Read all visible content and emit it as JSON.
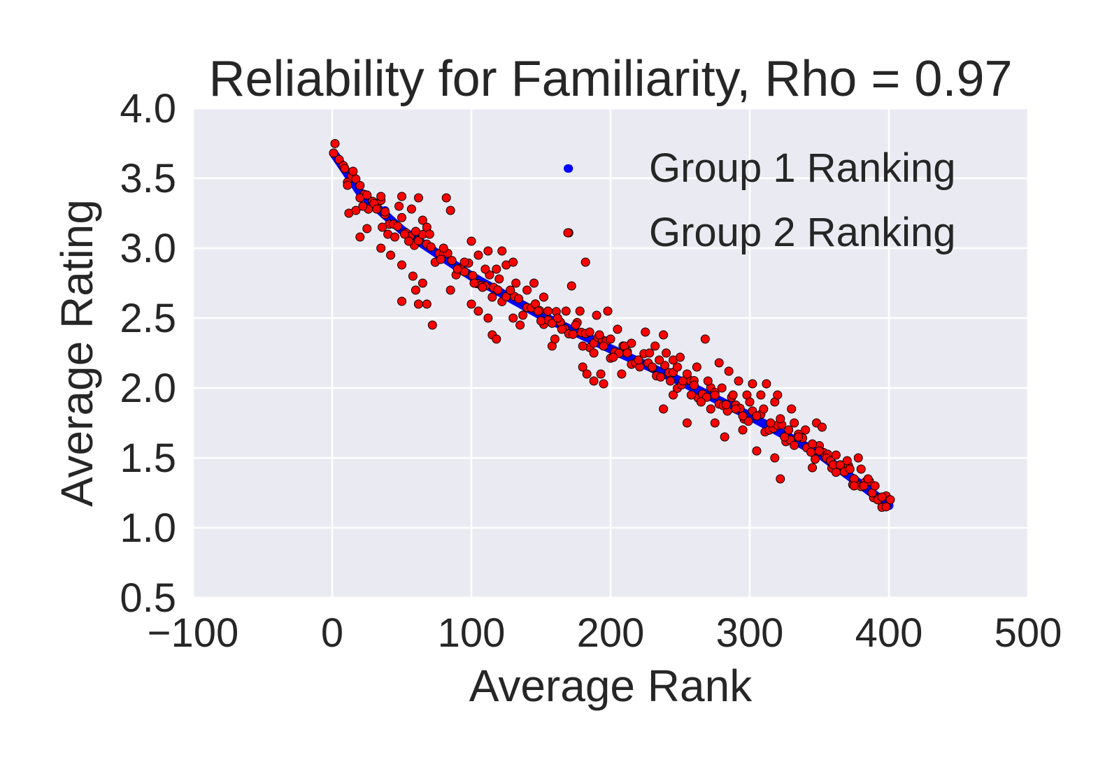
{
  "chart_data": {
    "type": "scatter",
    "title": "Reliability for Familiarity, Rho = 0.97",
    "xlabel": "Average Rank",
    "ylabel": "Average Rating",
    "xlim": [
      -100,
      500
    ],
    "ylim": [
      0.5,
      4.0
    ],
    "x_ticks": [
      -100,
      0,
      100,
      200,
      300,
      400,
      500
    ],
    "x_tick_labels": [
      "−100",
      "0",
      "100",
      "200",
      "300",
      "400",
      "500"
    ],
    "y_ticks": [
      0.5,
      1.0,
      1.5,
      2.0,
      2.5,
      3.0,
      3.5,
      4.0
    ],
    "y_tick_labels": [
      "0.5",
      "1.0",
      "1.5",
      "2.0",
      "2.5",
      "3.0",
      "3.5",
      "4.0"
    ],
    "grid": true,
    "legend_position": "top-right",
    "background_color": "#eaeaf2",
    "series": [
      {
        "name": "Group 1 Ranking",
        "color": "#0000ff",
        "curve": {
          "x": [
            1,
            20,
            50,
            100,
            150,
            200,
            250,
            300,
            350,
            400
          ],
          "y": [
            3.68,
            3.4,
            3.13,
            2.8,
            2.52,
            2.28,
            2.05,
            1.8,
            1.53,
            1.16
          ]
        },
        "outliers": [
          [
            38,
            3.27
          ],
          [
            170,
            3.57
          ]
        ]
      },
      {
        "name": "Group 2 Ranking",
        "color": "#ff0000",
        "curve": {
          "x": [
            1,
            20,
            50,
            100,
            150,
            200,
            250,
            300,
            350,
            400
          ],
          "y": [
            3.68,
            3.4,
            3.13,
            2.8,
            2.52,
            2.28,
            2.05,
            1.8,
            1.53,
            1.16
          ]
        },
        "points": [
          [
            1,
            3.68
          ],
          [
            9,
            3.57
          ],
          [
            11,
            3.45
          ],
          [
            12,
            3.25
          ],
          [
            15,
            3.55
          ],
          [
            17,
            3.27
          ],
          [
            20,
            3.36
          ],
          [
            22,
            3.3
          ],
          [
            25,
            3.38
          ],
          [
            30,
            3.32
          ],
          [
            32,
            3.28
          ],
          [
            35,
            3.37
          ],
          [
            36,
            3.15
          ],
          [
            38,
            3.26
          ],
          [
            40,
            3.1
          ],
          [
            45,
            3.08
          ],
          [
            48,
            3.3
          ],
          [
            50,
            3.37
          ],
          [
            52,
            3.1
          ],
          [
            55,
            3.05
          ],
          [
            57,
            3.28
          ],
          [
            60,
            3.12
          ],
          [
            62,
            3.36
          ],
          [
            65,
            3.2
          ],
          [
            68,
            3.15
          ],
          [
            70,
            3.1
          ],
          [
            20,
            3.08
          ],
          [
            25,
            3.14
          ],
          [
            35,
            3.0
          ],
          [
            42,
            2.95
          ],
          [
            50,
            2.88
          ],
          [
            58,
            2.8
          ],
          [
            60,
            2.7
          ],
          [
            62,
            2.6
          ],
          [
            65,
            2.75
          ],
          [
            68,
            2.6
          ],
          [
            72,
            2.45
          ],
          [
            50,
            2.62
          ],
          [
            80,
            3.0
          ],
          [
            82,
            3.36
          ],
          [
            85,
            3.27
          ],
          [
            78,
            2.92
          ],
          [
            85,
            2.7
          ],
          [
            90,
            2.85
          ],
          [
            95,
            2.9
          ],
          [
            100,
            3.05
          ],
          [
            102,
            2.75
          ],
          [
            105,
            2.95
          ],
          [
            108,
            2.72
          ],
          [
            110,
            2.85
          ],
          [
            112,
            2.98
          ],
          [
            115,
            2.65
          ],
          [
            118,
            2.85
          ],
          [
            120,
            2.78
          ],
          [
            122,
            2.98
          ],
          [
            125,
            2.88
          ],
          [
            128,
            2.7
          ],
          [
            130,
            2.9
          ],
          [
            132,
            2.75
          ],
          [
            100,
            2.6
          ],
          [
            105,
            2.55
          ],
          [
            112,
            2.5
          ],
          [
            115,
            2.38
          ],
          [
            118,
            2.35
          ],
          [
            130,
            2.5
          ],
          [
            135,
            2.45
          ],
          [
            140,
            2.7
          ],
          [
            145,
            2.75
          ],
          [
            148,
            2.55
          ],
          [
            150,
            2.48
          ],
          [
            152,
            2.65
          ],
          [
            155,
            2.55
          ],
          [
            158,
            2.3
          ],
          [
            160,
            2.35
          ],
          [
            162,
            2.5
          ],
          [
            165,
            2.42
          ],
          [
            168,
            2.55
          ],
          [
            170,
            3.11
          ],
          [
            172,
            2.73
          ],
          [
            175,
            2.45
          ],
          [
            178,
            2.55
          ],
          [
            180,
            2.3
          ],
          [
            182,
            2.9
          ],
          [
            185,
            2.4
          ],
          [
            188,
            2.25
          ],
          [
            190,
            2.52
          ],
          [
            192,
            2.38
          ],
          [
            195,
            2.3
          ],
          [
            198,
            2.55
          ],
          [
            200,
            2.35
          ],
          [
            202,
            2.22
          ],
          [
            205,
            2.42
          ],
          [
            208,
            2.1
          ],
          [
            210,
            2.3
          ],
          [
            212,
            2.25
          ],
          [
            180,
            2.15
          ],
          [
            183,
            2.1
          ],
          [
            188,
            2.05
          ],
          [
            193,
            2.1
          ],
          [
            195,
            2.03
          ],
          [
            215,
            2.32
          ],
          [
            220,
            2.2
          ],
          [
            225,
            2.4
          ],
          [
            228,
            2.25
          ],
          [
            230,
            2.15
          ],
          [
            232,
            2.3
          ],
          [
            235,
            2.2
          ],
          [
            238,
            2.38
          ],
          [
            240,
            2.25
          ],
          [
            243,
            2.05
          ],
          [
            245,
            2.2
          ],
          [
            248,
            2.15
          ],
          [
            250,
            2.22
          ],
          [
            252,
            2.05
          ],
          [
            255,
            2.1
          ],
          [
            258,
            1.95
          ],
          [
            260,
            2.02
          ],
          [
            262,
            2.15
          ],
          [
            265,
            1.9
          ],
          [
            268,
            2.35
          ],
          [
            270,
            2.05
          ],
          [
            272,
            1.85
          ],
          [
            275,
            1.95
          ],
          [
            278,
            2.18
          ],
          [
            280,
            2.0
          ],
          [
            283,
            1.88
          ],
          [
            285,
            2.12
          ],
          [
            288,
            1.95
          ],
          [
            290,
            1.85
          ],
          [
            292,
            2.05
          ],
          [
            295,
            1.8
          ],
          [
            298,
            1.95
          ],
          [
            300,
            1.9
          ],
          [
            302,
            2.03
          ],
          [
            305,
            1.8
          ],
          [
            308,
            1.95
          ],
          [
            310,
            1.85
          ],
          [
            312,
            2.03
          ],
          [
            315,
            1.75
          ],
          [
            318,
            1.9
          ],
          [
            320,
            1.95
          ],
          [
            322,
            1.78
          ],
          [
            325,
            1.65
          ],
          [
            328,
            1.7
          ],
          [
            330,
            1.85
          ],
          [
            332,
            1.75
          ],
          [
            335,
            1.65
          ],
          [
            238,
            1.85
          ],
          [
            245,
            1.95
          ],
          [
            255,
            1.75
          ],
          [
            275,
            1.75
          ],
          [
            282,
            1.65
          ],
          [
            295,
            1.7
          ],
          [
            305,
            1.55
          ],
          [
            318,
            1.5
          ],
          [
            322,
            1.35
          ],
          [
            340,
            1.7
          ],
          [
            345,
            1.6
          ],
          [
            348,
            1.75
          ],
          [
            350,
            1.55
          ],
          [
            352,
            1.72
          ],
          [
            355,
            1.5
          ],
          [
            358,
            1.48
          ],
          [
            360,
            1.45
          ],
          [
            362,
            1.52
          ],
          [
            365,
            1.45
          ],
          [
            368,
            1.4
          ],
          [
            370,
            1.48
          ],
          [
            372,
            1.42
          ],
          [
            375,
            1.35
          ],
          [
            378,
            1.5
          ],
          [
            380,
            1.42
          ],
          [
            382,
            1.3
          ],
          [
            385,
            1.35
          ],
          [
            388,
            1.25
          ],
          [
            390,
            1.3
          ],
          [
            392,
            1.2
          ],
          [
            395,
            1.22
          ],
          [
            398,
            1.15
          ],
          [
            345,
            1.43
          ],
          [
            375,
            1.3
          ]
        ]
      }
    ]
  }
}
